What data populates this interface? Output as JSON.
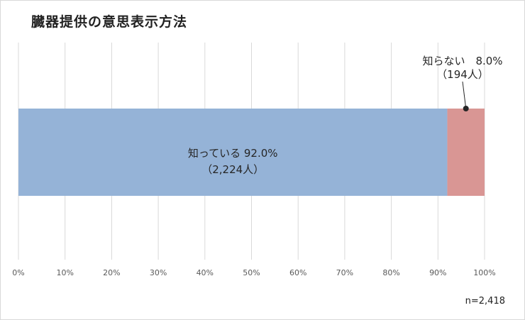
{
  "chart_data": {
    "type": "bar",
    "orientation": "horizontal",
    "stacked": true,
    "title": "臓器提供の意思表示方法",
    "categories": [
      ""
    ],
    "series": [
      {
        "name": "知っている",
        "values": [
          92.0
        ],
        "label": "知っている 92.0%",
        "count_label": "（2,224人）",
        "color": "#95b3d7"
      },
      {
        "name": "知らない",
        "values": [
          8.0
        ],
        "label": "知らない　8.0%",
        "count_label": "（194人）",
        "color": "#d99694"
      }
    ],
    "xlim": [
      0,
      100
    ],
    "xticks": [
      "0%",
      "10%",
      "20%",
      "30%",
      "40%",
      "50%",
      "60%",
      "70%",
      "80%",
      "90%",
      "100%"
    ],
    "grid": true,
    "legend": "none",
    "annotation": "n=2,418"
  }
}
